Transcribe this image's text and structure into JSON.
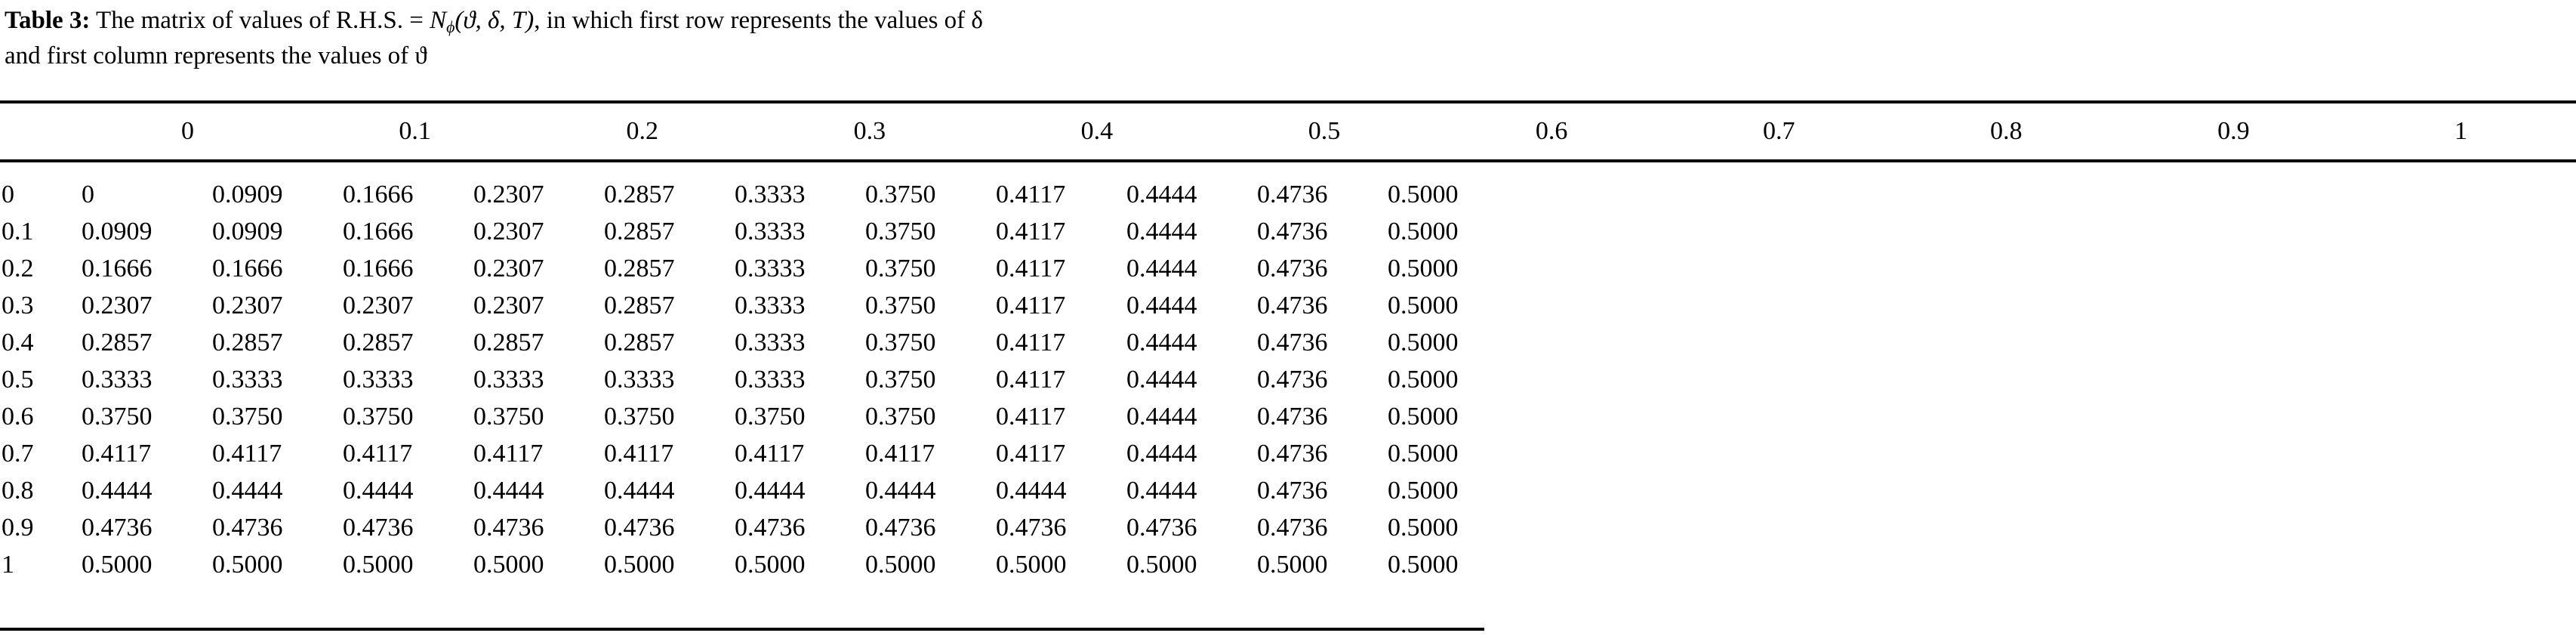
{
  "caption": {
    "label": "Table 3:",
    "text_part1": " The matrix of values of R.H.S. = ",
    "formula_base": "N",
    "formula_subscript": "ϕ",
    "formula_args": "(ϑ, δ, T)",
    "text_part2": ", in which first row represents the values of δ",
    "line2": "and first column represents the values of ϑ"
  },
  "table": {
    "header_values": [
      "0",
      "0.1",
      "0.2",
      "0.3",
      "0.4",
      "0.5",
      "0.6",
      "0.7",
      "0.8",
      "0.9",
      "1"
    ],
    "rows": [
      {
        "label": "0",
        "values": [
          "0",
          "0.0909",
          "0.1666",
          "0.2307",
          "0.2857",
          "0.3333",
          "0.3750",
          "0.4117",
          "0.4444",
          "0.4736",
          "0.5000"
        ]
      },
      {
        "label": "0.1",
        "values": [
          "0.0909",
          "0.0909",
          "0.1666",
          "0.2307",
          "0.2857",
          "0.3333",
          "0.3750",
          "0.4117",
          "0.4444",
          "0.4736",
          "0.5000"
        ]
      },
      {
        "label": "0.2",
        "values": [
          "0.1666",
          "0.1666",
          "0.1666",
          "0.2307",
          "0.2857",
          "0.3333",
          "0.3750",
          "0.4117",
          "0.4444",
          "0.4736",
          "0.5000"
        ]
      },
      {
        "label": "0.3",
        "values": [
          "0.2307",
          "0.2307",
          "0.2307",
          "0.2307",
          "0.2857",
          "0.3333",
          "0.3750",
          "0.4117",
          "0.4444",
          "0.4736",
          "0.5000"
        ]
      },
      {
        "label": "0.4",
        "values": [
          "0.2857",
          "0.2857",
          "0.2857",
          "0.2857",
          "0.2857",
          "0.3333",
          "0.3750",
          "0.4117",
          "0.4444",
          "0.4736",
          "0.5000"
        ]
      },
      {
        "label": "0.5",
        "values": [
          "0.3333",
          "0.3333",
          "0.3333",
          "0.3333",
          "0.3333",
          "0.3333",
          "0.3750",
          "0.4117",
          "0.4444",
          "0.4736",
          "0.5000"
        ]
      },
      {
        "label": "0.6",
        "values": [
          "0.3750",
          "0.3750",
          "0.3750",
          "0.3750",
          "0.3750",
          "0.3750",
          "0.3750",
          "0.4117",
          "0.4444",
          "0.4736",
          "0.5000"
        ]
      },
      {
        "label": "0.7",
        "values": [
          "0.4117",
          "0.4117",
          "0.4117",
          "0.4117",
          "0.4117",
          "0.4117",
          "0.4117",
          "0.4117",
          "0.4444",
          "0.4736",
          "0.5000"
        ]
      },
      {
        "label": "0.8",
        "values": [
          "0.4444",
          "0.4444",
          "0.4444",
          "0.4444",
          "0.4444",
          "0.4444",
          "0.4444",
          "0.4444",
          "0.4444",
          "0.4736",
          "0.5000"
        ]
      },
      {
        "label": "0.9",
        "values": [
          "0.4736",
          "0.4736",
          "0.4736",
          "0.4736",
          "0.4736",
          "0.4736",
          "0.4736",
          "0.4736",
          "0.4736",
          "0.4736",
          "0.5000"
        ]
      },
      {
        "label": "1",
        "values": [
          "0.5000",
          "0.5000",
          "0.5000",
          "0.5000",
          "0.5000",
          "0.5000",
          "0.5000",
          "0.5000",
          "0.5000",
          "0.5000",
          "0.5000"
        ]
      }
    ]
  }
}
